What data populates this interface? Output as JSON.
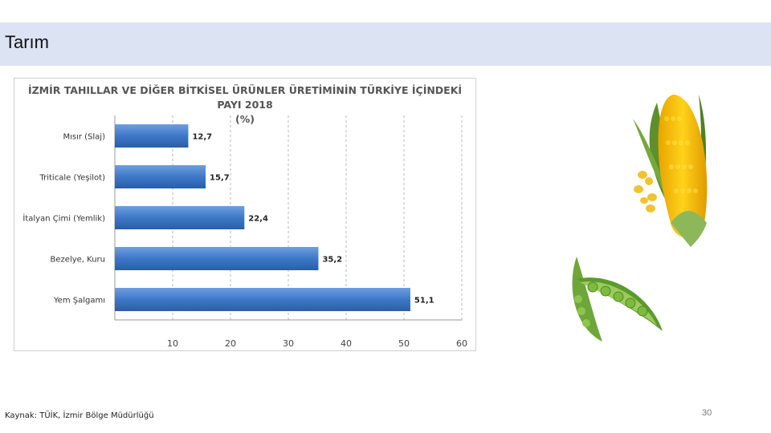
{
  "slide": {
    "title": "Tarım",
    "source": "Kaynak: TÜİK, İzmir Bölge Müdürlüğü",
    "page_number": "30"
  },
  "images": {
    "corn": "corn-icon",
    "peas": "pea-pod-icon"
  },
  "colors": {
    "title_band": "#dce3f3",
    "bar": "#3d78c6",
    "bar_dark": "#2a5ea8"
  },
  "chart_data": {
    "type": "bar",
    "orientation": "horizontal",
    "title_line1": "İZMİR TAHILLAR VE DİĞER BİTKİSEL ÜRÜNLER ÜRETİMİNİN TÜRKİYE İÇİNDEKİ PAYI 2018",
    "title_line2": "(%)",
    "categories": [
      "Mısır (Slaj)",
      "Triticale (Yeşilot)",
      "İtalyan Çimi (Yemlik)",
      "Bezelye, Kuru",
      "Yem Şalgamı"
    ],
    "values": [
      12.7,
      15.7,
      22.4,
      35.2,
      51.1
    ],
    "value_labels": [
      "12,7",
      "15,7",
      "22,4",
      "35,2",
      "51,1"
    ],
    "xlim": [
      0,
      60
    ],
    "xticks": [
      "10",
      "20",
      "30",
      "40",
      "50",
      "60"
    ],
    "grid": true
  }
}
